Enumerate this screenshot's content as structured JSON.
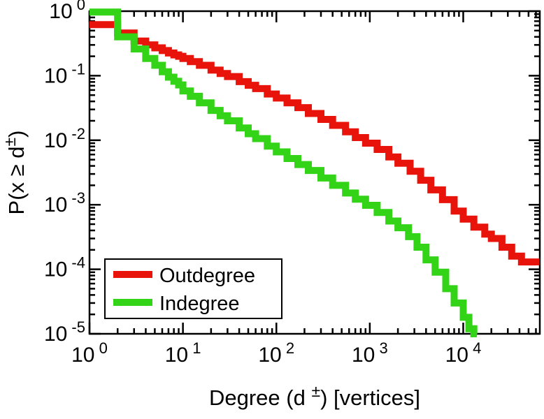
{
  "chart_data": {
    "type": "line",
    "subtype": "step-ccdf",
    "scale": "log-log",
    "title": "",
    "xlabel": {
      "pre": "Degree (d ",
      "sup": "±",
      "post": ") [vertices]"
    },
    "ylabel": {
      "pre": "P(x ≥ d",
      "sup": "±",
      "post": ")"
    },
    "tick_base": "10",
    "x_ticks_exp": [
      "0",
      "1",
      "2",
      "3",
      "4"
    ],
    "y_ticks_exp": [
      "0",
      "-1",
      "-2",
      "-3",
      "-4",
      "-5"
    ],
    "xlim": [
      1,
      66000
    ],
    "ylim": [
      1e-05,
      1
    ],
    "grid": false,
    "legend_position": "bottom-left-inside",
    "frame_color": "#000000",
    "background_color": "#ffffff",
    "legend": [
      {
        "label": "Outdegree",
        "color": "#e8130a"
      },
      {
        "label": "Indegree",
        "color": "#33d417"
      }
    ],
    "series": [
      {
        "name": "Outdegree",
        "color": "#e8130a",
        "points": [
          [
            1,
            0.62
          ],
          [
            2,
            0.46
          ],
          [
            3,
            0.345
          ],
          [
            4,
            0.3
          ],
          [
            5,
            0.27
          ],
          [
            6,
            0.245
          ],
          [
            7,
            0.225
          ],
          [
            8,
            0.21
          ],
          [
            9,
            0.2
          ],
          [
            10,
            0.185
          ],
          [
            12,
            0.165
          ],
          [
            15,
            0.145
          ],
          [
            20,
            0.122
          ],
          [
            25,
            0.108
          ],
          [
            30,
            0.097
          ],
          [
            40,
            0.081
          ],
          [
            50,
            0.071
          ],
          [
            60,
            0.063
          ],
          [
            80,
            0.052
          ],
          [
            100,
            0.045
          ],
          [
            130,
            0.038
          ],
          [
            170,
            0.032
          ],
          [
            220,
            0.026
          ],
          [
            300,
            0.021
          ],
          [
            400,
            0.017
          ],
          [
            550,
            0.0135
          ],
          [
            700,
            0.011
          ],
          [
            900,
            0.009
          ],
          [
            1200,
            0.0072
          ],
          [
            1600,
            0.0055
          ],
          [
            2000,
            0.0044
          ],
          [
            2700,
            0.0033
          ],
          [
            3500,
            0.0024
          ],
          [
            4500,
            0.0017
          ],
          [
            6000,
            0.0012
          ],
          [
            8000,
            0.0008
          ],
          [
            10000,
            0.0006
          ],
          [
            13000,
            0.00045
          ],
          [
            17000,
            0.00035
          ],
          [
            20000,
            0.0003
          ],
          [
            26000,
            0.00022
          ],
          [
            33000,
            0.00016
          ],
          [
            42000,
            0.00013
          ],
          [
            60000,
            0.000115
          ]
        ]
      },
      {
        "name": "Indegree",
        "color": "#33d417",
        "points": [
          [
            1,
            0.97
          ],
          [
            2,
            0.4
          ],
          [
            3,
            0.26
          ],
          [
            4,
            0.185
          ],
          [
            5,
            0.145
          ],
          [
            6,
            0.115
          ],
          [
            7,
            0.095
          ],
          [
            8,
            0.082
          ],
          [
            9,
            0.072
          ],
          [
            10,
            0.058
          ],
          [
            12,
            0.048
          ],
          [
            15,
            0.038
          ],
          [
            20,
            0.029
          ],
          [
            25,
            0.024
          ],
          [
            30,
            0.02
          ],
          [
            40,
            0.0155
          ],
          [
            50,
            0.0126
          ],
          [
            60,
            0.0106
          ],
          [
            80,
            0.0081
          ],
          [
            100,
            0.0066
          ],
          [
            130,
            0.0052
          ],
          [
            170,
            0.0042
          ],
          [
            220,
            0.0034
          ],
          [
            300,
            0.0026
          ],
          [
            400,
            0.002
          ],
          [
            550,
            0.00152
          ],
          [
            700,
            0.00122
          ],
          [
            900,
            0.00098
          ],
          [
            1200,
            0.00076
          ],
          [
            1600,
            0.00056
          ],
          [
            2000,
            0.00044
          ],
          [
            2600,
            0.00032
          ],
          [
            3200,
            0.00022
          ],
          [
            4000,
            0.00014
          ],
          [
            5000,
            9e-05
          ],
          [
            6500,
            5e-05
          ],
          [
            8000,
            3e-05
          ],
          [
            10000,
            1.8e-05
          ],
          [
            11500,
            1.2e-05
          ],
          [
            13000,
            1e-05
          ],
          [
            14000,
            1e-05
          ]
        ]
      }
    ]
  }
}
